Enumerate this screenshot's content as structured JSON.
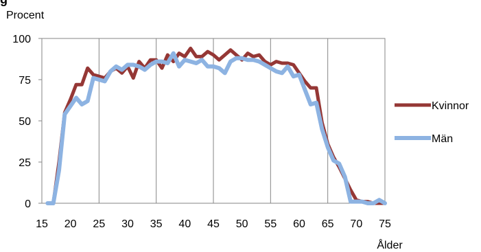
{
  "header": {
    "title_fragment": "g"
  },
  "chart_data": {
    "type": "line",
    "title": "",
    "xlabel": "Ålder",
    "ylabel": "Procent",
    "xlim": [
      15,
      75
    ],
    "ylim": [
      0,
      100
    ],
    "x_ticks": [
      15,
      20,
      25,
      30,
      35,
      40,
      45,
      50,
      55,
      60,
      65,
      70,
      75
    ],
    "y_ticks": [
      0,
      25,
      50,
      75,
      100
    ],
    "grid": {
      "vertical": true,
      "horizontal": false
    },
    "legend": "right",
    "x": [
      16,
      17,
      18,
      19,
      20,
      21,
      22,
      23,
      24,
      25,
      26,
      27,
      28,
      29,
      30,
      31,
      32,
      33,
      34,
      35,
      36,
      37,
      38,
      39,
      40,
      41,
      42,
      43,
      44,
      45,
      46,
      47,
      48,
      49,
      50,
      51,
      52,
      53,
      54,
      55,
      56,
      57,
      58,
      59,
      60,
      61,
      62,
      63,
      64,
      65,
      66,
      67,
      68,
      69,
      70,
      71,
      72,
      73,
      74,
      75
    ],
    "series": [
      {
        "name": "Kvinnor",
        "color": "#953735",
        "values": [
          0,
          0,
          25,
          55,
          63,
          72,
          72,
          82,
          78,
          77,
          76,
          80,
          82,
          79,
          83,
          76,
          86,
          82,
          87,
          87,
          82,
          90,
          86,
          91,
          89,
          94,
          89,
          89,
          92,
          90,
          87,
          90,
          93,
          90,
          87,
          91,
          89,
          90,
          86,
          84,
          86,
          85,
          85,
          84,
          79,
          74,
          70,
          70,
          49,
          36,
          28,
          22,
          15,
          8,
          2,
          1,
          1,
          0,
          0,
          0
        ]
      },
      {
        "name": "Män",
        "color": "#8db3e2",
        "values": [
          0,
          0,
          20,
          54,
          59,
          64,
          60,
          62,
          76,
          75,
          74,
          80,
          83,
          81,
          84,
          84,
          83,
          81,
          84,
          86,
          86,
          85,
          91,
          83,
          87,
          86,
          85,
          87,
          83,
          83,
          82,
          79,
          86,
          88,
          88,
          87,
          87,
          86,
          84,
          82,
          80,
          79,
          83,
          77,
          78,
          69,
          60,
          61,
          45,
          34,
          26,
          24,
          16,
          1,
          1,
          1,
          0,
          0,
          2,
          0
        ]
      }
    ]
  }
}
